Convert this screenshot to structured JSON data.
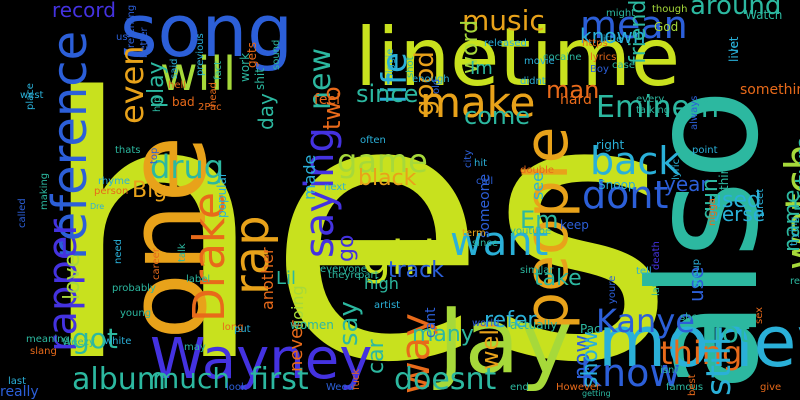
{
  "words": [
    {
      "text": "hes",
      "color": "#c8e11e",
      "vertical": false
    },
    {
      "text": "also",
      "color": "#2cb8a0",
      "vertical": true
    },
    {
      "text": "song",
      "color": "#2c5fd8",
      "vertical": false
    },
    {
      "text": "linetime",
      "color": "#c8e11e",
      "vertical": false
    },
    {
      "text": "one",
      "color": "#e8a21a",
      "vertical": true
    },
    {
      "text": "Wayney",
      "color": "#4432e0",
      "vertical": false
    },
    {
      "text": "Jay",
      "color": "#a6d93a",
      "vertical": false
    },
    {
      "text": "money",
      "color": "#2ab0d8",
      "vertical": false
    },
    {
      "text": "people",
      "color": "#e8a21a",
      "vertical": true
    },
    {
      "text": "reference",
      "color": "#2c5fd8",
      "vertical": true
    },
    {
      "text": "make",
      "color": "#e8a21a",
      "vertical": false
    },
    {
      "text": "will",
      "color": "#a6d93a",
      "vertical": false
    },
    {
      "text": "rapper",
      "color": "#4432e0",
      "vertical": true
    },
    {
      "text": "Drake",
      "color": "#e86a1a",
      "vertical": true
    },
    {
      "text": "rap",
      "color": "#e8a21a",
      "vertical": true
    },
    {
      "text": "mean",
      "color": "#2c5fd8",
      "vertical": false
    },
    {
      "text": "Eminem",
      "color": "#2cb8a0",
      "vertical": false
    },
    {
      "text": "album",
      "color": "#2cb8a0",
      "vertical": false
    },
    {
      "text": "girl",
      "color": "#c8e11e",
      "vertical": false
    },
    {
      "text": "want",
      "color": "#2ab0d8",
      "vertical": false
    },
    {
      "text": "back",
      "color": "#2ab0d8",
      "vertical": false
    },
    {
      "text": "know",
      "color": "#2c5fd8",
      "vertical": false
    },
    {
      "text": "Kanye",
      "color": "#2c5fd8",
      "vertical": false
    },
    {
      "text": "way",
      "color": "#e86a1a",
      "vertical": true
    },
    {
      "text": "doesnt",
      "color": "#2cb8a0",
      "vertical": false
    },
    {
      "text": "first",
      "color": "#2cb8a0",
      "vertical": false
    },
    {
      "text": "life",
      "color": "#2ab0d8",
      "vertical": true
    },
    {
      "text": "game",
      "color": "#a6d93a",
      "vertical": false
    },
    {
      "text": "dont",
      "color": "#2c5fd8",
      "vertical": false
    },
    {
      "text": "saying",
      "color": "#4432e0",
      "vertical": true
    },
    {
      "text": "watch",
      "color": "#a6d93a",
      "vertical": true
    },
    {
      "text": "drug",
      "color": "#2cb8a0",
      "vertical": false
    },
    {
      "text": "even",
      "color": "#e8a21a",
      "vertical": true
    },
    {
      "text": "make",
      "color": "#e8a21a",
      "vertical": false
    },
    {
      "text": "music",
      "color": "#e8a21a",
      "vertical": false
    },
    {
      "text": "since",
      "color": "#2cb8a0",
      "vertical": false
    },
    {
      "text": "got",
      "color": "#2cb8a0",
      "vertical": false
    },
    {
      "text": "much",
      "color": "#2cb8a0",
      "vertical": false
    },
    {
      "text": "thing",
      "color": "#e86a1a",
      "vertical": false
    },
    {
      "text": "lot",
      "color": "#2cb8a0",
      "vertical": false
    },
    {
      "text": "still",
      "color": "#2ab0d8",
      "vertical": true
    },
    {
      "text": "Big",
      "color": "#e8a21a",
      "vertical": false
    },
    {
      "text": "around",
      "color": "#2cb8a0",
      "vertical": false
    },
    {
      "text": "love",
      "color": "#a6d93a",
      "vertical": true
    },
    {
      "text": "track",
      "color": "#2c5fd8",
      "vertical": false
    },
    {
      "text": "take",
      "color": "#2cb8a0",
      "vertical": false
    },
    {
      "text": "say",
      "color": "#2cb8a0",
      "vertical": true
    },
    {
      "text": "new",
      "color": "#2cb8a0",
      "vertical": true
    },
    {
      "text": "well",
      "color": "#e8a21a",
      "vertical": true
    },
    {
      "text": "now",
      "color": "#2c5fd8",
      "vertical": true
    },
    {
      "text": "Em",
      "color": "#2cb8a0",
      "vertical": false
    },
    {
      "text": "go",
      "color": "#4432e0",
      "vertical": true
    },
    {
      "text": "car",
      "color": "#2cb8a0",
      "vertical": true
    },
    {
      "text": "man",
      "color": "#e86a1a",
      "vertical": false
    },
    {
      "text": "black",
      "color": "#e8a21a",
      "vertical": false
    },
    {
      "text": "come",
      "color": "#2cb8a0",
      "vertical": false
    },
    {
      "text": "good",
      "color": "#e8a21a",
      "vertical": true
    },
    {
      "text": "two",
      "color": "#e86a1a",
      "vertical": true
    },
    {
      "text": "known",
      "color": "#2ab0d8",
      "vertical": false
    },
    {
      "text": "friend",
      "color": "#2cb8a0",
      "vertical": true
    },
    {
      "text": "Future",
      "color": "#2cb8a0",
      "vertical": true
    },
    {
      "text": "name",
      "color": "#2cb8a0",
      "vertical": true
    },
    {
      "text": "verse",
      "color": "#2ab0d8",
      "vertical": false
    },
    {
      "text": "used",
      "color": "#2ab0d8",
      "vertical": false
    },
    {
      "text": "year",
      "color": "#2c5fd8",
      "vertical": false
    },
    {
      "text": "play",
      "color": "#2cb8a0",
      "vertical": true
    },
    {
      "text": "refer",
      "color": "#2ab0d8",
      "vertical": false
    },
    {
      "text": "many",
      "color": "#2cb8a0",
      "vertical": false
    },
    {
      "text": "show",
      "color": "#2ab0d8",
      "vertical": true
    },
    {
      "text": "record",
      "color": "#4432e0",
      "vertical": false
    },
    {
      "text": "word",
      "color": "#a6d93a",
      "vertical": true
    },
    {
      "text": "made",
      "color": "#2ab0d8",
      "vertical": true
    },
    {
      "text": "going",
      "color": "#a6d93a",
      "vertical": true
    },
    {
      "text": "Lil",
      "color": "#2cb8a0",
      "vertical": false
    },
    {
      "text": "never",
      "color": "#e86a1a",
      "vertical": true
    },
    {
      "text": "day",
      "color": "#2cb8a0",
      "vertical": true
    },
    {
      "text": "gun",
      "color": "#2cb8a0",
      "vertical": true
    },
    {
      "text": "use",
      "color": "#2c5fd8",
      "vertical": true
    },
    {
      "text": "see",
      "color": "#2ab0d8",
      "vertical": true
    },
    {
      "text": "Im",
      "color": "#2cb8a0",
      "vertical": false
    },
    {
      "text": "high",
      "color": "#2cb8a0",
      "vertical": false
    },
    {
      "text": "feel",
      "color": "#e86a1a",
      "vertical": false
    },
    {
      "text": "another",
      "color": "#e86a1a",
      "vertical": true
    },
    {
      "text": "hard",
      "color": "#e86a1a",
      "vertical": false
    },
    {
      "text": "something",
      "color": "#e86a1a",
      "vertical": false
    },
    {
      "text": "really",
      "color": "#2c5fd8",
      "vertical": false
    },
    {
      "text": "keep",
      "color": "#2c5fd8",
      "vertical": false
    },
    {
      "text": "someone",
      "color": "#2c5fd8",
      "vertical": true
    },
    {
      "text": "cant",
      "color": "#2c5fd8",
      "vertical": true
    },
    {
      "text": "Snoop",
      "color": "#2ab0d8",
      "vertical": false
    },
    {
      "text": "Pac",
      "color": "#2cb8a0",
      "vertical": false
    },
    {
      "text": "right",
      "color": "#2ab0d8",
      "vertical": false
    },
    {
      "text": "fuck",
      "color": "#e86a1a",
      "vertical": true
    },
    {
      "text": "shit",
      "color": "#2cb8a0",
      "vertical": true
    },
    {
      "text": "bad",
      "color": "#e86a1a",
      "vertical": false
    },
    {
      "text": "2Pac",
      "color": "#e86a1a",
      "vertical": false
    },
    {
      "text": "gets",
      "color": "#e86a1a",
      "vertical": true
    },
    {
      "text": "call",
      "color": "#2c5fd8",
      "vertical": false
    },
    {
      "text": "hit",
      "color": "#2ab0d8",
      "vertical": false
    },
    {
      "text": "next",
      "color": "#2ab0d8",
      "vertical": false
    },
    {
      "text": "often",
      "color": "#2ab0d8",
      "vertical": false
    },
    {
      "text": "term",
      "color": "#e8a21a",
      "vertical": false
    },
    {
      "text": "every",
      "color": "#2cb8a0",
      "vertical": false
    },
    {
      "text": "talking",
      "color": "#2cb8a0",
      "vertical": false
    },
    {
      "text": "since",
      "color": "#2cb8a0",
      "vertical": false
    },
    {
      "text": "point",
      "color": "#2ab0d8",
      "vertical": false
    },
    {
      "text": "street",
      "color": "#2ab0d8",
      "vertical": true
    },
    {
      "text": "God",
      "color": "#a6d93a",
      "vertical": false
    },
    {
      "text": "might",
      "color": "#2cb8a0",
      "vertical": false
    },
    {
      "text": "though",
      "color": "#a6d93a",
      "vertical": false
    },
    {
      "text": "think",
      "color": "#2cb8a0",
      "vertical": true
    },
    {
      "text": "live",
      "color": "#2ab0d8",
      "vertical": true
    },
    {
      "text": "let",
      "color": "#2ab0d8",
      "vertical": true
    },
    {
      "text": "Watch",
      "color": "#2cb8a0",
      "vertical": false
    },
    {
      "text": "https",
      "color": "#e86a1a",
      "vertical": false
    },
    {
      "text": "cocaine",
      "color": "#2cb8a0",
      "vertical": false
    },
    {
      "text": "case",
      "color": "#2cb8a0",
      "vertical": false
    },
    {
      "text": "movie",
      "color": "#2ab0d8",
      "vertical": false
    },
    {
      "text": "shot",
      "color": "#2cb8a0",
      "vertical": true
    },
    {
      "text": "Biggie",
      "color": "#2ab0d8",
      "vertical": true
    },
    {
      "text": "released",
      "color": "#2ab0d8",
      "vertical": false
    },
    {
      "text": "didnt",
      "color": "#2ab0d8",
      "vertical": false
    },
    {
      "text": "enough",
      "color": "#2ab0d8",
      "vertical": false
    },
    {
      "text": "little",
      "color": "#2ab0d8",
      "vertical": false
    },
    {
      "text": "old",
      "color": "#2c5fd8",
      "vertical": true
    },
    {
      "text": "fact",
      "color": "#2cb8a0",
      "vertical": true
    },
    {
      "text": "work",
      "color": "#2cb8a0",
      "vertical": true
    },
    {
      "text": "sound",
      "color": "#2cb8a0",
      "vertical": true
    },
    {
      "text": "hell",
      "color": "#e86a1a",
      "vertical": false
    },
    {
      "text": "said",
      "color": "#2ab0d8",
      "vertical": true
    },
    {
      "text": "hip",
      "color": "#2cb8a0",
      "vertical": true
    },
    {
      "text": "better",
      "color": "#2c5fd8",
      "vertical": true
    },
    {
      "text": "us",
      "color": "#2c5fd8",
      "vertical": false
    },
    {
      "text": "referring",
      "color": "#2c5fd8",
      "vertical": true
    },
    {
      "text": "head",
      "color": "#e86a1a",
      "vertical": true
    },
    {
      "text": "previous",
      "color": "#2ab0d8",
      "vertical": true
    },
    {
      "text": "place",
      "color": "#2ab0d8",
      "vertical": true
    },
    {
      "text": "west",
      "color": "#2ab0d8",
      "vertical": false
    },
    {
      "text": "thats",
      "color": "#2cb8a0",
      "vertical": false
    },
    {
      "text": "top",
      "color": "#2c5fd8",
      "vertical": true
    },
    {
      "text": "person",
      "color": "#e86a1a",
      "vertical": false
    },
    {
      "text": "Dre",
      "color": "#2ab0d8",
      "vertical": false
    },
    {
      "text": "rhyme",
      "color": "#2ab0d8",
      "vertical": false
    },
    {
      "text": "called",
      "color": "#2c5fd8",
      "vertical": true
    },
    {
      "text": "making",
      "color": "#2cb8a0",
      "vertical": true
    },
    {
      "text": "meaning",
      "color": "#2cb8a0",
      "vertical": false
    },
    {
      "text": "slang",
      "color": "#e86a1a",
      "vertical": false
    },
    {
      "text": "Weezy",
      "color": "#2cb8a0",
      "vertical": false
    },
    {
      "text": "last",
      "color": "#2ab0d8",
      "vertical": false
    },
    {
      "text": "white",
      "color": "#2ab0d8",
      "vertical": false
    },
    {
      "text": "young",
      "color": "#2cb8a0",
      "vertical": false
    },
    {
      "text": "probably",
      "color": "#2cb8a0",
      "vertical": false
    },
    {
      "text": "need",
      "color": "#2ab0d8",
      "vertical": true
    },
    {
      "text": "career",
      "color": "#e86a1a",
      "vertical": true
    },
    {
      "text": "label",
      "color": "#2cb8a0",
      "vertical": false
    },
    {
      "text": "may",
      "color": "#2cb8a0",
      "vertical": false
    },
    {
      "text": "look",
      "color": "#2c5fd8",
      "vertical": false
    },
    {
      "text": "long",
      "color": "#e86a1a",
      "vertical": false
    },
    {
      "text": "put",
      "color": "#2ab0d8",
      "vertical": false
    },
    {
      "text": "theyre",
      "color": "#2cb8a0",
      "vertical": false
    },
    {
      "text": "women",
      "color": "#2cb8a0",
      "vertical": false
    },
    {
      "text": "artist",
      "color": "#2ab0d8",
      "vertical": false
    },
    {
      "text": "world",
      "color": "#2c5fd8",
      "vertical": false
    },
    {
      "text": "youtube",
      "color": "#2cb8a0",
      "vertical": false
    },
    {
      "text": "similar",
      "color": "#2cb8a0",
      "vertical": false
    },
    {
      "text": "youre",
      "color": "#2c5fd8",
      "vertical": true
    },
    {
      "text": "actually",
      "color": "#2cb8a0",
      "vertical": false
    },
    {
      "text": "end",
      "color": "#2cb8a0",
      "vertical": false
    },
    {
      "text": "However",
      "color": "#e86a1a",
      "vertical": false
    },
    {
      "text": "getting",
      "color": "#2cb8a0",
      "vertical": false
    },
    {
      "text": "famous",
      "color": "#2cb8a0",
      "vertical": false
    },
    {
      "text": "isnt",
      "color": "#2cb8a0",
      "vertical": false
    },
    {
      "text": "shes",
      "color": "#2cb8a0",
      "vertical": false
    },
    {
      "text": "sex",
      "color": "#e86a1a",
      "vertical": true
    },
    {
      "text": "give",
      "color": "#e86a1a",
      "vertical": false
    },
    {
      "text": "lyric",
      "color": "#2ab0d8",
      "vertical": true
    },
    {
      "text": "best",
      "color": "#e86a1a",
      "vertical": true
    },
    {
      "text": "death",
      "color": "#4432e0",
      "vertical": true
    },
    {
      "text": "later",
      "color": "#2cb8a0",
      "vertical": true
    },
    {
      "text": "tell",
      "color": "#2ab0d8",
      "vertical": false
    },
    {
      "text": "group",
      "color": "#2ab0d8",
      "vertical": true
    },
    {
      "text": "nigga",
      "color": "#e86a1a",
      "vertical": true
    },
    {
      "text": "relationship",
      "color": "#2cb8a0",
      "vertical": false
    },
    {
      "text": "trying",
      "color": "#2ab0d8",
      "vertical": true
    },
    {
      "text": "always",
      "color": "#2c5fd8",
      "vertical": true
    },
    {
      "text": "city",
      "color": "#2c5fd8",
      "vertical": true
    },
    {
      "text": "double",
      "color": "#e86a1a",
      "vertical": false
    },
    {
      "text": "popular",
      "color": "#2ab0d8",
      "vertical": true
    },
    {
      "text": "talk",
      "color": "#2cb8a0",
      "vertical": true
    },
    {
      "text": "part",
      "color": "#2cb8a0",
      "vertical": false
    },
    {
      "text": "everyone",
      "color": "#2cb8a0",
      "vertical": false
    },
    {
      "text": "Weed",
      "color": "#2c5fd8",
      "vertical": false
    },
    {
      "text": "Boy",
      "color": "#2c5fd8",
      "vertical": false
    },
    {
      "text": "lyrics",
      "color": "#e86a1a",
      "vertical": false
    }
  ]
}
